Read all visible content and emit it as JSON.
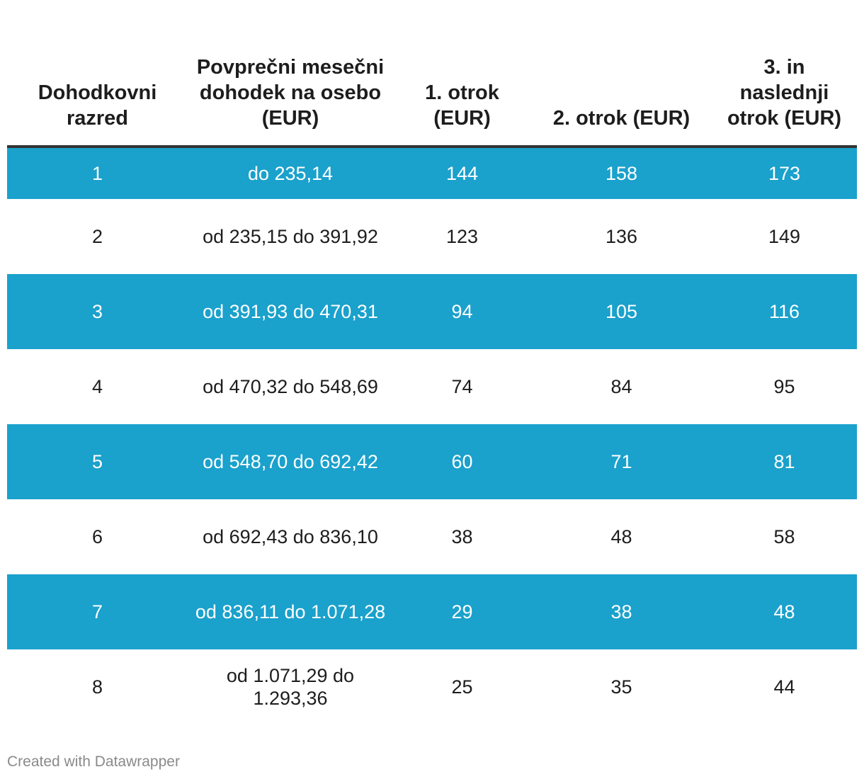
{
  "chart_data": {
    "type": "table",
    "columns": [
      "Dohodkovni razred",
      "Povprečni mesečni dohodek na osebo (EUR)",
      "1. otrok (EUR)",
      "2. otrok (EUR)",
      "3. in naslednji otrok (EUR)"
    ],
    "rows": [
      [
        "1",
        "do 235,14",
        "144",
        "158",
        "173"
      ],
      [
        "2",
        "od 235,15 do 391,92",
        "123",
        "136",
        "149"
      ],
      [
        "3",
        "od 391,93 do 470,31",
        "94",
        "105",
        "116"
      ],
      [
        "4",
        "od 470,32 do 548,69",
        "74",
        "84",
        "95"
      ],
      [
        "5",
        "od 548,70 do 692,42",
        "60",
        "71",
        "81"
      ],
      [
        "6",
        "od 692,43 do 836,10",
        "38",
        "48",
        "58"
      ],
      [
        "7",
        "od 836,11 do 1.071,28",
        "29",
        "38",
        "48"
      ],
      [
        "8",
        "od 1.071,29 do 1.293,36",
        "25",
        "35",
        "44"
      ]
    ],
    "stripe_color": "#1aa1cc"
  },
  "credit": "Created with Datawrapper"
}
